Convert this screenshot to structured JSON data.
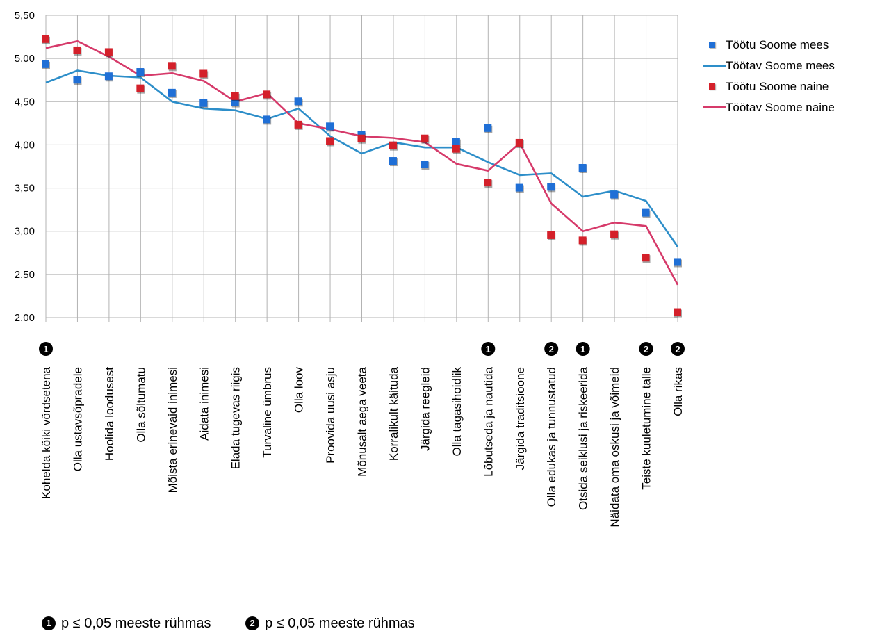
{
  "chart_data": {
    "type": "line",
    "title": "",
    "xlabel": "",
    "ylabel": "",
    "ylim": [
      2.0,
      5.5
    ],
    "yticks": [
      "2,00",
      "2,50",
      "3,00",
      "3,50",
      "4,00",
      "4,50",
      "5,00",
      "5,50"
    ],
    "grid": true,
    "legend_position": "right",
    "categories": [
      "Kohelda kõiki võrdsetena",
      "Olla ustavsõpradele",
      "Hoolida loodusest",
      "Olla sõltumatu",
      "Mõista erinevaid inimesi",
      "Aidata inimesi",
      "Elada tugevas riigis",
      "Turvaline ümbrus",
      "Olla loov",
      "Proovida uusi asju",
      "Mõnusalt aega veeta",
      "Korralikult käituda",
      "Järgida reegleid",
      "Olla tagasihoidlik",
      "Lõbutseda ja nautida",
      "Järgida traditsioone",
      "Olla edukas ja tunnustatud",
      "Otsida seiklusi ja riskeerida",
      "Näidata oma oskusi ja võimeid",
      "Teiste kuuletumine talle",
      "Olla rikas"
    ],
    "markers": [
      "1",
      "",
      "",
      "",
      "",
      "",
      "",
      "",
      "",
      "",
      "",
      "",
      "",
      "",
      "1",
      "",
      "2",
      "1",
      "",
      "2",
      "2"
    ],
    "series": [
      {
        "name": "Töötu Soome mees",
        "kind": "points",
        "color": "#1f6fd6",
        "values": [
          4.93,
          4.75,
          4.79,
          4.84,
          4.6,
          4.48,
          4.49,
          4.29,
          4.5,
          4.21,
          4.11,
          3.81,
          3.77,
          4.03,
          4.19,
          3.5,
          3.51,
          3.73,
          3.42,
          3.21,
          2.64
        ]
      },
      {
        "name": "Töötav Soome mees",
        "kind": "line",
        "color": "#2d8ec9",
        "values": [
          4.72,
          4.86,
          4.8,
          4.78,
          4.5,
          4.42,
          4.4,
          4.3,
          4.42,
          4.1,
          3.9,
          4.03,
          3.97,
          3.97,
          3.8,
          3.65,
          3.67,
          3.4,
          3.47,
          3.35,
          2.82
        ]
      },
      {
        "name": "Töötu Soome naine",
        "kind": "points",
        "color": "#d4202a",
        "values": [
          5.22,
          5.09,
          5.07,
          4.65,
          4.91,
          4.82,
          4.56,
          4.58,
          4.23,
          4.04,
          4.07,
          3.99,
          4.07,
          3.95,
          3.56,
          4.02,
          2.95,
          2.89,
          2.96,
          2.69,
          2.06
        ]
      },
      {
        "name": "Töötav Soome naine",
        "kind": "line",
        "color": "#d63a6a",
        "values": [
          5.12,
          5.2,
          5.02,
          4.8,
          4.83,
          4.74,
          4.5,
          4.6,
          4.25,
          4.18,
          4.1,
          4.08,
          4.03,
          3.78,
          3.7,
          4.02,
          3.32,
          3.0,
          3.1,
          3.06,
          2.38
        ]
      }
    ]
  },
  "legend": [
    {
      "label": "Töötu Soome mees",
      "kind": "points",
      "color": "#1f6fd6"
    },
    {
      "label": "Töötav Soome mees",
      "kind": "line",
      "color": "#2d8ec9"
    },
    {
      "label": "Töötu Soome naine",
      "kind": "points",
      "color": "#d4202a"
    },
    {
      "label": "Töötav Soome naine",
      "kind": "line",
      "color": "#d63a6a"
    }
  ],
  "footnotes": [
    {
      "mark": "1",
      "text": "p ≤ 0,05  meeste rühmas"
    },
    {
      "mark": "2",
      "text": "p ≤ 0,05  meeste rühmas"
    }
  ]
}
